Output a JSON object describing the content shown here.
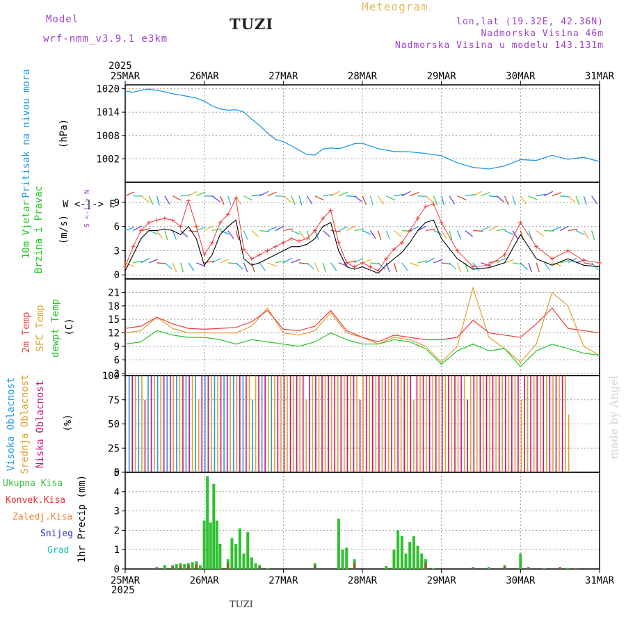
{
  "header": {
    "model_label": "Model",
    "model_name": "wrf-nmm_v3.9.1 e3km",
    "station": "TUZI",
    "title": "Meteogram",
    "lonlat": "lon,lat (19.32E, 42.36N)",
    "elevation": "Nadmorska Visina 46m",
    "model_elevation": "Nadmorska Visina u modelu 143.131m",
    "footer_station": "TUZI",
    "credit": "made by Angel"
  },
  "colors": {
    "pressure": "#1e9be8",
    "temp2m": "#ee3a3a",
    "sfc": "#e0a030",
    "dewpt": "#22c822",
    "high_cloud": "#1e9be8",
    "mid_cloud": "#e0a030",
    "low_cloud": "#d01070",
    "precip_total": "#30c030",
    "precip_conv": "#ee3030",
    "precip_frozen": "#f08030",
    "snow": "#3030e0",
    "hail": "#20c0c0"
  },
  "chart_data": {
    "year": "2025",
    "dates": [
      "25MAR",
      "26MAR",
      "27MAR",
      "28MAR",
      "29MAR",
      "30MAR",
      "31MAR"
    ],
    "panels": [
      {
        "id": "pressure",
        "type": "line",
        "labels": [
          "Pritisak na nivou mora"
        ],
        "unit": "(hPa)",
        "ylim": [
          996,
          1021
        ],
        "yticks": [
          1002,
          1008,
          1014,
          1020
        ],
        "x_days": [
          0,
          0.1,
          0.2,
          0.3,
          0.4,
          0.5,
          0.6,
          0.7,
          0.8,
          0.9,
          1.0,
          1.1,
          1.2,
          1.3,
          1.4,
          1.5,
          1.6,
          1.7,
          1.8,
          1.9,
          2.0,
          2.1,
          2.2,
          2.3,
          2.4,
          2.5,
          2.6,
          2.7,
          2.8,
          2.9,
          3.0,
          3.2,
          3.4,
          3.6,
          3.8,
          4.0,
          4.2,
          4.4,
          4.6,
          4.8,
          5.0,
          5.2,
          5.4,
          5.6,
          5.8,
          6.0
        ],
        "values": [
          1019.4,
          1019.1,
          1019.6,
          1019.9,
          1019.6,
          1019.2,
          1018.7,
          1018.4,
          1018.0,
          1017.6,
          1016.8,
          1015.6,
          1014.8,
          1014.5,
          1014.6,
          1014.0,
          1012.2,
          1010.6,
          1008.6,
          1007.0,
          1006.4,
          1005.4,
          1004.2,
          1003.1,
          1003.0,
          1004.5,
          1004.8,
          1004.6,
          1005.2,
          1005.9,
          1006.0,
          1004.6,
          1003.9,
          1003.8,
          1003.4,
          1002.8,
          1001.0,
          999.8,
          999.4,
          1000.2,
          1001.8,
          1001.6,
          1002.9,
          1001.9,
          1002.4,
          1001.3
        ]
      },
      {
        "id": "wind",
        "type": "line",
        "labels": [
          "10m Vjetar",
          "Brzina i Pravac"
        ],
        "unit": "(m/s)",
        "ylim": [
          -0.5,
          11.5
        ],
        "yticks": [
          0,
          3,
          6,
          9
        ],
        "x_days": [
          0,
          0.1,
          0.2,
          0.3,
          0.4,
          0.5,
          0.6,
          0.7,
          0.8,
          0.9,
          1.0,
          1.1,
          1.2,
          1.3,
          1.4,
          1.5,
          1.6,
          1.7,
          1.8,
          1.9,
          2.0,
          2.1,
          2.2,
          2.3,
          2.4,
          2.5,
          2.6,
          2.7,
          2.8,
          2.9,
          3.0,
          3.1,
          3.2,
          3.3,
          3.4,
          3.5,
          3.6,
          3.7,
          3.8,
          3.9,
          4.0,
          4.2,
          4.4,
          4.6,
          4.8,
          5.0,
          5.2,
          5.4,
          5.6,
          5.8,
          6.0
        ],
        "gust": [
          1.0,
          3.5,
          5.5,
          6.5,
          6.8,
          7.0,
          6.8,
          6.0,
          9.2,
          6.0,
          2.5,
          4.0,
          6.5,
          7.5,
          9.5,
          3.2,
          2.0,
          2.5,
          3.0,
          3.5,
          4.0,
          4.5,
          4.2,
          4.5,
          5.5,
          7.0,
          8.0,
          4.0,
          1.5,
          1.0,
          1.5,
          1.0,
          0.5,
          2.0,
          3.2,
          4.0,
          5.5,
          7.0,
          8.5,
          8.8,
          6.5,
          3.0,
          1.0,
          1.2,
          2.5,
          6.5,
          3.5,
          2.0,
          3.0,
          1.8,
          1.5
        ],
        "speed": [
          0.5,
          2.5,
          4.5,
          5.5,
          5.5,
          5.7,
          5.5,
          5.0,
          6.0,
          4.5,
          1.2,
          2.5,
          5.0,
          6.0,
          6.8,
          2.0,
          1.2,
          1.5,
          2.0,
          2.5,
          3.0,
          3.5,
          3.5,
          3.8,
          4.5,
          6.0,
          6.5,
          3.0,
          1.0,
          0.7,
          1.0,
          0.6,
          0.2,
          1.2,
          2.0,
          2.8,
          4.0,
          5.5,
          6.5,
          6.8,
          4.5,
          2.0,
          0.7,
          0.9,
          1.5,
          5.0,
          2.0,
          1.2,
          2.0,
          1.2,
          1.0
        ]
      },
      {
        "id": "temperature",
        "type": "line",
        "labels": [
          "2m Temp",
          "SFC Temp",
          "dewpt Temp"
        ],
        "unit": "(C)",
        "ylim": [
          2.5,
          24
        ],
        "yticks": [
          3,
          6,
          9,
          12,
          15,
          18,
          21
        ],
        "x_days": [
          0,
          0.2,
          0.4,
          0.6,
          0.8,
          1.0,
          1.2,
          1.4,
          1.6,
          1.8,
          2.0,
          2.2,
          2.4,
          2.6,
          2.8,
          3.0,
          3.2,
          3.4,
          3.6,
          3.8,
          4.0,
          4.2,
          4.4,
          4.6,
          4.8,
          5.0,
          5.2,
          5.4,
          5.6,
          5.8,
          6.0
        ],
        "t2m": [
          13.0,
          13.5,
          15.5,
          14.0,
          13.0,
          12.8,
          13.0,
          13.2,
          14.5,
          17.0,
          12.8,
          12.5,
          13.5,
          17.0,
          12.5,
          11.0,
          10.0,
          11.5,
          11.0,
          10.5,
          10.5,
          11.0,
          14.8,
          12.0,
          11.5,
          11.0,
          14.0,
          17.5,
          13.0,
          12.5,
          12.0
        ],
        "sfc": [
          12.0,
          12.5,
          15.5,
          13.0,
          12.0,
          12.0,
          12.0,
          12.0,
          13.5,
          17.5,
          12.0,
          11.5,
          12.5,
          16.5,
          12.0,
          11.0,
          9.5,
          11.0,
          10.5,
          9.0,
          5.5,
          9.0,
          22.0,
          11.0,
          8.5,
          5.5,
          9.5,
          21.0,
          18.0,
          9.0,
          7.0
        ],
        "dewpt": [
          9.5,
          10.0,
          12.5,
          11.5,
          11.0,
          11.0,
          10.5,
          9.5,
          10.5,
          10.0,
          9.5,
          9.0,
          10.0,
          12.0,
          10.5,
          9.5,
          9.5,
          10.5,
          10.0,
          8.5,
          5.0,
          8.0,
          9.5,
          8.0,
          8.5,
          4.5,
          8.0,
          9.5,
          8.5,
          7.5,
          7.0
        ]
      },
      {
        "id": "cloud",
        "type": "bar",
        "labels": [
          "Visoka Oblacnost",
          "Srednja Oblacnost",
          "Niska Oblacnost"
        ],
        "unit": "(%)",
        "ylim": [
          0,
          100
        ],
        "yticks": [
          0,
          25,
          50,
          75,
          100
        ]
      },
      {
        "id": "precip",
        "type": "bar",
        "labels": [
          "Ukupna Kisa",
          "Konvek.Kisa",
          "Zaledj.Kisa",
          "Snijeg",
          "Grad"
        ],
        "unit": "1hr Precip (mm)",
        "ylim": [
          0,
          5
        ],
        "yticks": [
          0,
          1,
          2,
          3,
          4,
          5
        ],
        "x_days": [
          0.4,
          0.5,
          0.6,
          0.65,
          0.7,
          0.75,
          0.8,
          0.85,
          0.9,
          0.95,
          1.0,
          1.04,
          1.08,
          1.12,
          1.16,
          1.2,
          1.3,
          1.35,
          1.4,
          1.45,
          1.5,
          1.55,
          1.6,
          1.65,
          1.7,
          1.8,
          2.4,
          2.7,
          2.75,
          2.8,
          2.9,
          3.3,
          3.4,
          3.45,
          3.5,
          3.55,
          3.6,
          3.65,
          3.7,
          3.75,
          3.8,
          3.9,
          4.4,
          4.6,
          4.8,
          5.0,
          5.1,
          5.3,
          5.5,
          5.6,
          5.7
        ],
        "values": [
          0.1,
          0.2,
          0.2,
          0.25,
          0.3,
          0.25,
          0.3,
          0.35,
          0.4,
          0.2,
          2.5,
          4.8,
          2.4,
          4.4,
          2.5,
          1.3,
          0.5,
          1.6,
          1.3,
          2.1,
          0.8,
          1.9,
          0.6,
          0.3,
          0.2,
          0.05,
          0.3,
          2.6,
          1.0,
          1.1,
          0.5,
          0.15,
          1.0,
          2.0,
          1.7,
          0.8,
          1.4,
          1.7,
          1.2,
          0.8,
          0.5,
          0.05,
          0.1,
          0.1,
          0.2,
          0.8,
          0.1,
          0.05,
          0.1,
          0.05,
          0.05
        ]
      }
    ]
  }
}
